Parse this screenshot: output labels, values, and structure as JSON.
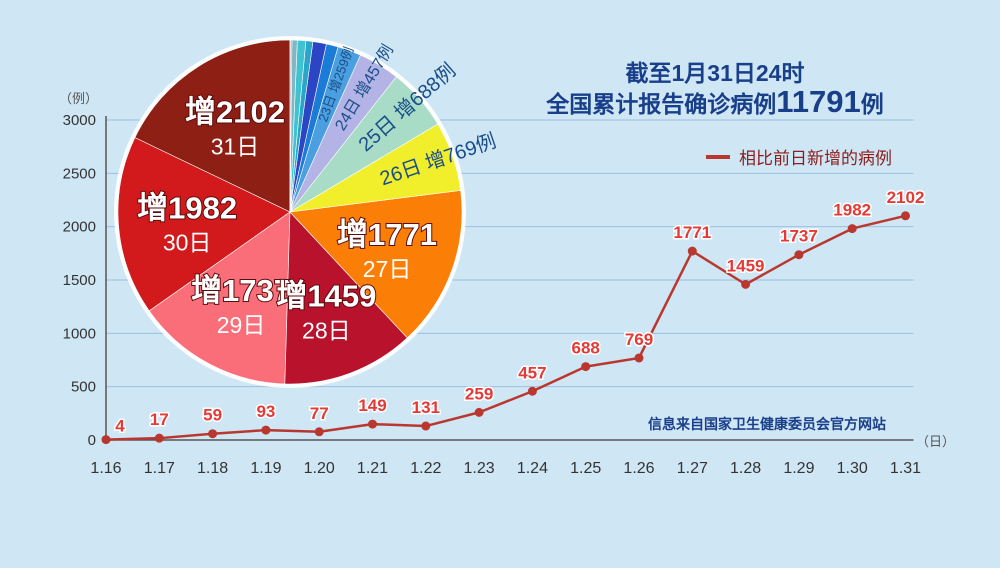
{
  "headline": {
    "line1": "截至1月31日24时",
    "line2_prefix": "全国累计报告确诊病例",
    "line2_value": "11791",
    "line2_suffix": "例"
  },
  "legend_label": "相比前日新增的病例",
  "source_note": "信息来自国家卫生健康委员会官方网站",
  "colors": {
    "line": "#b9372e",
    "label": "#e53935",
    "headline": "#1a3f8a",
    "background": "#cfe6f4"
  },
  "chart_data": [
    {
      "type": "line",
      "ylabel": "（例）",
      "xlabel": "（日）",
      "ylim": [
        0,
        3000
      ],
      "yticks": [
        "0",
        "500",
        "1000",
        "1500",
        "2000",
        "2500",
        "3000"
      ],
      "grid": true,
      "legend_position": "top-right",
      "categories": [
        "1.16",
        "1.17",
        "1.18",
        "1.19",
        "1.20",
        "1.21",
        "1.22",
        "1.23",
        "1.24",
        "1.25",
        "1.26",
        "1.27",
        "1.28",
        "1.29",
        "1.30",
        "1.31"
      ],
      "series": [
        {
          "name": "相比前日新增的病例",
          "values": [
            4,
            17,
            59,
            93,
            77,
            149,
            131,
            259,
            457,
            688,
            769,
            1771,
            1459,
            1737,
            1982,
            2102
          ]
        }
      ]
    },
    {
      "type": "pie",
      "slices": [
        {
          "label": "增2102",
          "sub": "31日",
          "value": 2102,
          "color": "#8e1f14",
          "text_color": "#ffffff"
        },
        {
          "label": "增1982",
          "sub": "30日",
          "value": 1982,
          "color": "#d21a1c",
          "text_color": "#ffffff"
        },
        {
          "label": "增1737",
          "sub": "29日",
          "value": 1737,
          "color": "#fa6e79",
          "text_color": "#ffffff"
        },
        {
          "label": "增1459",
          "sub": "28日",
          "value": 1459,
          "color": "#b8122d",
          "text_color": "#ffffff"
        },
        {
          "label": "增1771",
          "sub": "27日",
          "value": 1771,
          "color": "#fb7f06",
          "text_color": "#ffffff"
        },
        {
          "label": "26日 增769例",
          "value": 769,
          "color": "#f1ee2b",
          "text_color": "#1a4e8a"
        },
        {
          "label": "25日 增688例",
          "value": 688,
          "color": "#a8dcc6",
          "text_color": "#1a4e8a"
        },
        {
          "label": "24日 增457例",
          "value": 457,
          "color": "#b3b3e6",
          "text_color": "#1a4e8a"
        },
        {
          "label": "23日 增259例",
          "value": 259,
          "color": "#4a9fe0",
          "text_color": "#1a4e8a"
        },
        {
          "value": 131,
          "color": "#1c7bd6"
        },
        {
          "value": 149,
          "color": "#2b45c4"
        },
        {
          "value": 77,
          "color": "#2aa6c8"
        },
        {
          "value": 93,
          "color": "#40c3d0"
        },
        {
          "value": 59,
          "color": "#7fb8c4"
        },
        {
          "value": 17,
          "color": "#8a9aa6"
        },
        {
          "value": 4,
          "color": "#6c7a84"
        }
      ]
    }
  ]
}
